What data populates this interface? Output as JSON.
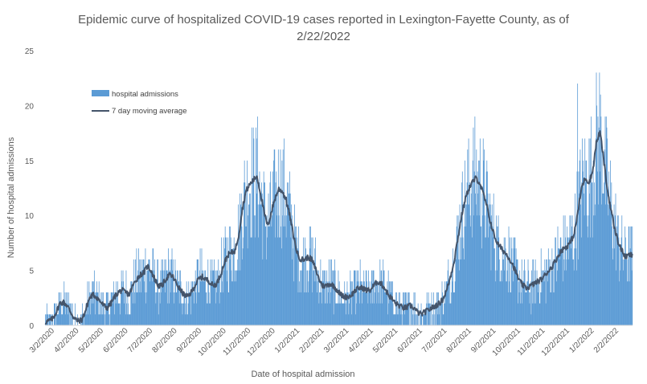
{
  "chart_data": {
    "type": "bar",
    "title_lines": [
      "Epidemic curve of hospitalized COVID-19 cases reported in Lexington-Fayette County, as of",
      "2/22/2022"
    ],
    "xlabel": "Date of hospital admission",
    "ylabel": "Number of hospital admissions",
    "ylim": [
      0,
      25
    ],
    "y_ticks": [
      0,
      5,
      10,
      15,
      20,
      25
    ],
    "x_tick_labels": [
      "3/2/2020",
      "4/2/2020",
      "5/2/2020",
      "6/2/2020",
      "7/2/2020",
      "8/2/2020",
      "9/2/2020",
      "10/2/2020",
      "11/2/2020",
      "12/2/2020",
      "1/2/2021",
      "2/2/2021",
      "3/2/2021",
      "4/2/2021",
      "5/2/2021",
      "6/2/2021",
      "7/2/2021",
      "8/2/2021",
      "9/2/2021",
      "10/2/2021",
      "11/2/2021",
      "12/2/2021",
      "1/2/2022",
      "2/2/2022"
    ],
    "grid": false,
    "legend_position": "top-left",
    "series": [
      {
        "name": "hospital admissions",
        "kind": "bar",
        "color": "#5B9BD5",
        "weekly_average_values": [
          0.3,
          0.4,
          0.6,
          1.2,
          2.0,
          2.1,
          1.8,
          1.2,
          0.6,
          0.4,
          0.5,
          1.3,
          2.4,
          2.8,
          2.6,
          2.2,
          1.8,
          1.6,
          2.0,
          2.6,
          3.0,
          3.2,
          3.0,
          2.8,
          3.6,
          4.2,
          4.6,
          4.8,
          5.4,
          5.0,
          4.2,
          3.6,
          3.6,
          4.2,
          4.6,
          4.4,
          3.8,
          3.2,
          2.8,
          2.6,
          3.0,
          3.6,
          4.2,
          4.4,
          4.2,
          4.0,
          3.6,
          3.8,
          4.6,
          5.6,
          6.4,
          6.6,
          6.8,
          8.2,
          10.6,
          12.2,
          12.8,
          13.2,
          13.6,
          12.0,
          10.2,
          9.0,
          10.4,
          11.6,
          12.4,
          12.2,
          11.4,
          10.0,
          8.2,
          6.6,
          6.0,
          6.0,
          6.2,
          6.0,
          5.2,
          4.2,
          3.6,
          3.6,
          3.8,
          3.6,
          3.2,
          2.8,
          2.6,
          2.6,
          2.8,
          3.2,
          3.4,
          3.4,
          3.2,
          3.2,
          3.6,
          4.0,
          3.8,
          3.4,
          2.8,
          2.4,
          2.0,
          1.8,
          1.6,
          1.6,
          1.8,
          1.6,
          1.2,
          1.0,
          1.2,
          1.4,
          1.6,
          1.8,
          2.0,
          2.4,
          3.2,
          4.4,
          5.8,
          7.8,
          9.8,
          11.4,
          12.4,
          13.0,
          13.4,
          13.0,
          12.0,
          10.8,
          9.4,
          8.2,
          7.4,
          7.0,
          6.6,
          6.2,
          5.6,
          4.8,
          4.0,
          3.6,
          3.4,
          3.6,
          3.8,
          4.0,
          4.2,
          4.6,
          5.0,
          5.4,
          6.0,
          6.6,
          7.0,
          7.2,
          7.6,
          8.4,
          10.4,
          12.6,
          13.4,
          13.0,
          14.0,
          16.6,
          17.6,
          15.2,
          12.4,
          10.6,
          8.8,
          7.6,
          6.8,
          6.2,
          6.4
        ]
      },
      {
        "name": "7 day moving average",
        "kind": "line",
        "color": "#44546A",
        "weekly_average_values": [
          0.3,
          0.4,
          0.6,
          1.2,
          2.0,
          2.1,
          1.8,
          1.2,
          0.6,
          0.4,
          0.5,
          1.3,
          2.4,
          2.8,
          2.6,
          2.2,
          1.8,
          1.6,
          2.0,
          2.6,
          3.0,
          3.2,
          3.0,
          2.8,
          3.6,
          4.2,
          4.6,
          4.8,
          5.4,
          5.0,
          4.2,
          3.6,
          3.6,
          4.2,
          4.6,
          4.4,
          3.8,
          3.2,
          2.8,
          2.6,
          3.0,
          3.6,
          4.2,
          4.4,
          4.2,
          4.0,
          3.6,
          3.8,
          4.6,
          5.6,
          6.4,
          6.6,
          6.8,
          8.2,
          10.6,
          12.2,
          12.8,
          13.2,
          13.6,
          12.0,
          10.2,
          9.0,
          10.4,
          11.6,
          12.4,
          12.2,
          11.4,
          10.0,
          8.2,
          6.6,
          6.0,
          6.0,
          6.2,
          6.0,
          5.2,
          4.2,
          3.6,
          3.6,
          3.8,
          3.6,
          3.2,
          2.8,
          2.6,
          2.6,
          2.8,
          3.2,
          3.4,
          3.4,
          3.2,
          3.2,
          3.6,
          4.0,
          3.8,
          3.4,
          2.8,
          2.4,
          2.0,
          1.8,
          1.6,
          1.6,
          1.8,
          1.6,
          1.2,
          1.0,
          1.2,
          1.4,
          1.6,
          1.8,
          2.0,
          2.4,
          3.2,
          4.4,
          5.8,
          7.8,
          9.8,
          11.4,
          12.4,
          13.0,
          13.4,
          13.0,
          12.0,
          10.8,
          9.4,
          8.2,
          7.4,
          7.0,
          6.6,
          6.2,
          5.6,
          4.8,
          4.0,
          3.6,
          3.4,
          3.6,
          3.8,
          4.0,
          4.2,
          4.6,
          5.0,
          5.4,
          6.0,
          6.6,
          7.0,
          7.2,
          7.6,
          8.4,
          10.4,
          12.6,
          13.4,
          13.0,
          14.0,
          16.6,
          17.6,
          15.2,
          12.4,
          10.6,
          8.8,
          7.6,
          6.8,
          6.2,
          6.4
        ]
      }
    ],
    "peaks": [
      {
        "date": "1/2022",
        "value": 22
      }
    ]
  }
}
